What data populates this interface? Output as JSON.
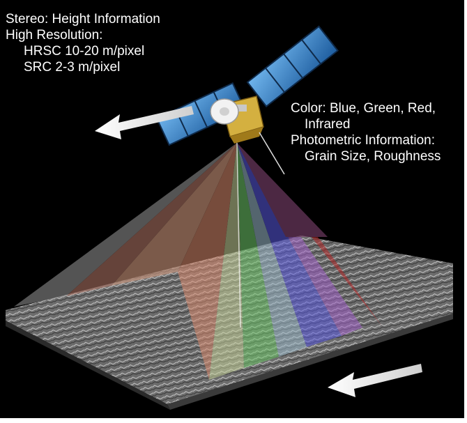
{
  "left_labels": {
    "line1": "Stereo:  Height Information",
    "line2": "High Resolution:",
    "line3": "HRSC 10-20 m/pixel",
    "line4": "SRC 2-3 m/pixel"
  },
  "right_labels": {
    "line1": "Color: Blue, Green, Red,",
    "line2": "Infrared",
    "line3": "Photometric Information:",
    "line4": "Grain Size, Roughness"
  },
  "colors": {
    "background": "#000000",
    "text": "#ffffff",
    "beam_grey": "#9a9a9a",
    "beam_red": "#d9876f",
    "beam_green": "#8fd07a",
    "beam_blue": "#6f6fe0",
    "beam_magenta": "#b060c8",
    "beam_dark_red": "#c02020",
    "solar_panel": "#3a84c8",
    "satellite_body": "#d4b040"
  },
  "icons": {
    "satellite": "satellite-icon",
    "motion_arrow": "arrow-left-icon"
  }
}
